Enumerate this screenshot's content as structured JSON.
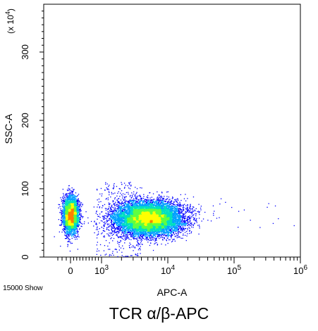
{
  "chart_data": {
    "type": "scatter",
    "style": "density-dot-plot",
    "xlabel": "APC-A",
    "ylabel": "SSC-A",
    "ylabel_multiplier": "(x 10",
    "ylabel_multiplier_exp": "4",
    "ylabel_multiplier_close": ")",
    "x_scale": "biexponential",
    "xlim": [
      -300,
      1000000
    ],
    "x_ticks": [
      {
        "value": 0,
        "base": "0",
        "exp": ""
      },
      {
        "value": 1000,
        "base": "10",
        "exp": "3"
      },
      {
        "value": 10000,
        "base": "10",
        "exp": "4"
      },
      {
        "value": 100000,
        "base": "10",
        "exp": "5"
      },
      {
        "value": 1000000,
        "base": "10",
        "exp": "6"
      }
    ],
    "ylim": [
      0,
      370
    ],
    "y_ticks": [
      0,
      100,
      200,
      300
    ],
    "grid": false,
    "populations": [
      {
        "name": "",
        "x_center": 0,
        "y_center": 62,
        "approx_events": 3800
      },
      {
        "name": "",
        "x_center": 5000,
        "y_center": 57,
        "approx_events": 10900
      }
    ],
    "density_colors": [
      "#0000ff",
      "#00a0ff",
      "#00e0c0",
      "#60ff40",
      "#ffff00",
      "#ff8000"
    ]
  },
  "events_label": "15000 Show",
  "caption": "TCR α/β-APC"
}
